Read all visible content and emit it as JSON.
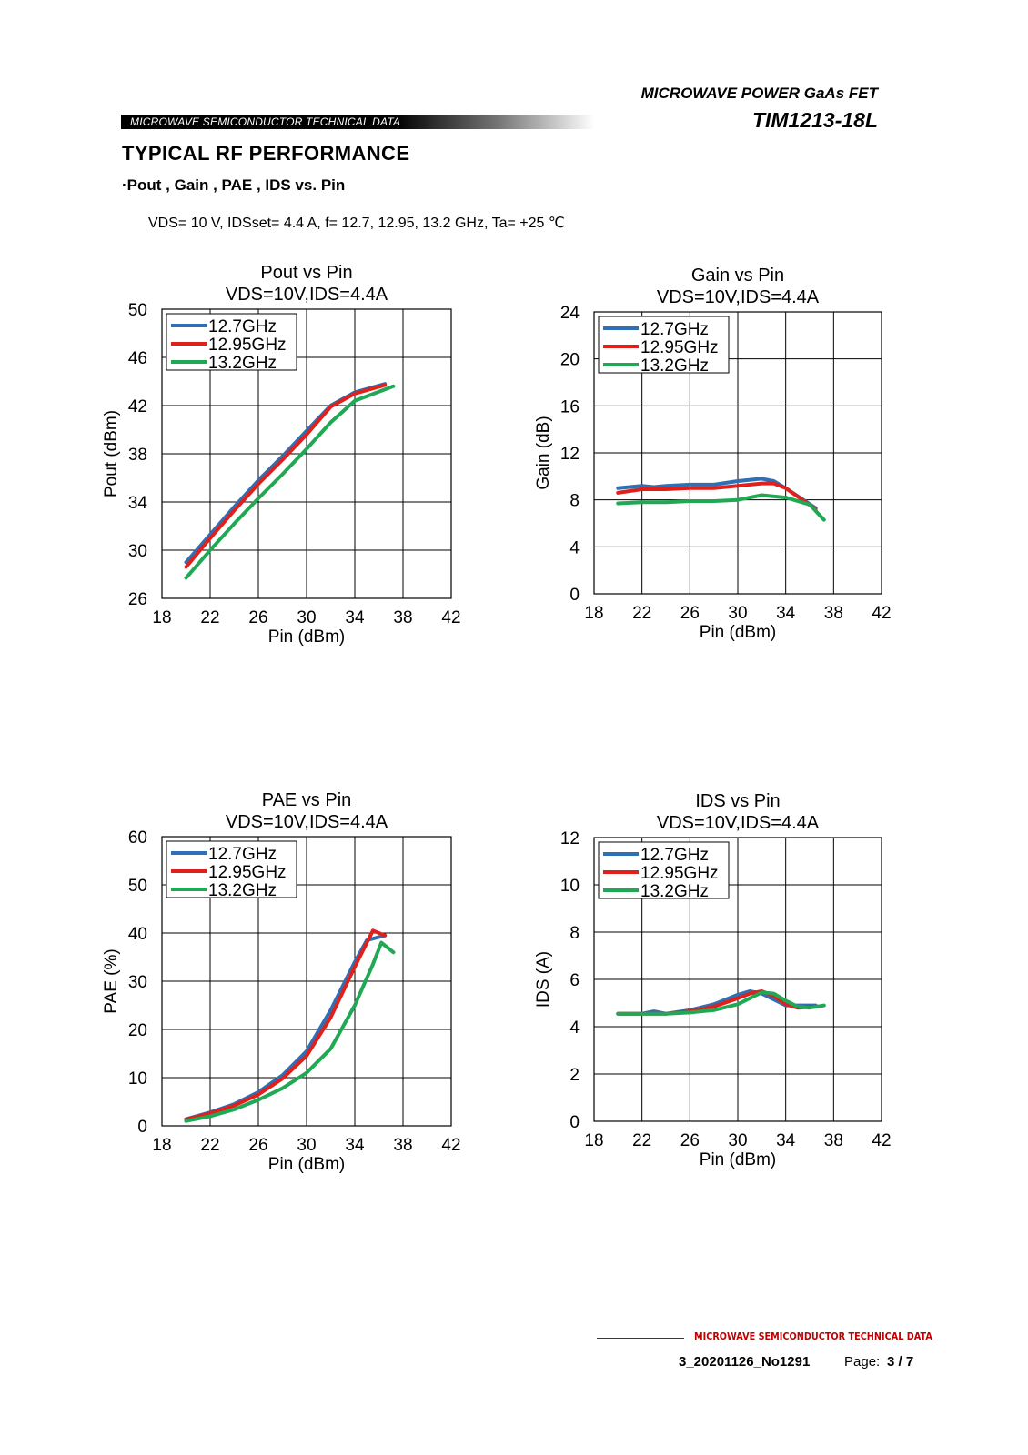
{
  "header": {
    "title": "MICROWAVE POWER GaAs FET",
    "model": "TIM1213-18L",
    "banner": "MICROWAVE SEMICONDUCTOR TECHNICAL DATA"
  },
  "section_title": "TYPICAL  RF  PERFORMANCE",
  "subsection_title": "·Pout , Gain , PAE , IDS vs. Pin",
  "conditions": "VDS= 10 V, IDSset= 4.4 A, f= 12.7, 12.95, 13.2 GHz, Ta= +25 ℃",
  "colors": {
    "12.7GHz": "#2e6fb5",
    "12.95GHz": "#e0201b",
    "13.2GHz": "#20a855",
    "grid": "#000000"
  },
  "chart_data": [
    {
      "type": "line",
      "title": "Pout vs Pin",
      "subtitle": "VDS=10V,IDS=4.4A",
      "xlabel": "Pin (dBm)",
      "ylabel": "Pout (dBm)",
      "xlim": [
        18,
        42
      ],
      "ylim": [
        26,
        50
      ],
      "xticks": [
        18,
        22,
        26,
        30,
        34,
        38,
        42
      ],
      "yticks": [
        26,
        30,
        34,
        38,
        42,
        46,
        50
      ],
      "grid": true,
      "legend": "top-left",
      "series": [
        {
          "name": "12.7GHz",
          "color": "#2e6fb5",
          "x": [
            20,
            22,
            24,
            26,
            28,
            30,
            32,
            34,
            36.5
          ],
          "y": [
            29,
            31.3,
            33.6,
            35.8,
            37.8,
            39.9,
            42.0,
            43.1,
            43.8
          ]
        },
        {
          "name": "12.95GHz",
          "color": "#e0201b",
          "x": [
            20,
            22,
            24,
            26,
            28,
            30,
            32,
            34,
            36.5
          ],
          "y": [
            28.6,
            31.0,
            33.3,
            35.5,
            37.5,
            39.6,
            41.9,
            43.0,
            43.7
          ]
        },
        {
          "name": "13.2GHz",
          "color": "#20a855",
          "x": [
            20,
            22,
            24,
            26,
            28,
            30,
            32,
            34,
            37.2
          ],
          "y": [
            27.7,
            30.0,
            32.2,
            34.3,
            36.3,
            38.4,
            40.6,
            42.4,
            43.6
          ]
        }
      ]
    },
    {
      "type": "line",
      "title": "Gain vs Pin",
      "subtitle": "VDS=10V,IDS=4.4A",
      "xlabel": "Pin (dBm)",
      "ylabel": "Gain (dB)",
      "xlim": [
        18,
        42
      ],
      "ylim": [
        0,
        24
      ],
      "xticks": [
        18,
        22,
        26,
        30,
        34,
        38,
        42
      ],
      "yticks": [
        0,
        4,
        8,
        12,
        16,
        20,
        24
      ],
      "grid": true,
      "legend": "top-left",
      "series": [
        {
          "name": "12.7GHz",
          "color": "#2e6fb5",
          "x": [
            20,
            22,
            23,
            24,
            26,
            28,
            30,
            32,
            33,
            34,
            36.5
          ],
          "y": [
            9.0,
            9.2,
            9.1,
            9.2,
            9.3,
            9.3,
            9.6,
            9.8,
            9.6,
            9.0,
            7.3
          ]
        },
        {
          "name": "12.95GHz",
          "color": "#e0201b",
          "x": [
            20,
            22,
            24,
            26,
            28,
            30,
            32,
            33,
            34,
            36.5
          ],
          "y": [
            8.6,
            8.9,
            8.9,
            9.0,
            9.0,
            9.2,
            9.4,
            9.4,
            9.0,
            7.2
          ]
        },
        {
          "name": "13.2GHz",
          "color": "#20a855",
          "x": [
            20,
            22,
            24,
            26,
            28,
            30,
            32,
            34,
            36,
            37.2
          ],
          "y": [
            7.7,
            7.8,
            7.8,
            7.9,
            7.9,
            8.0,
            8.4,
            8.2,
            7.6,
            6.3
          ]
        }
      ]
    },
    {
      "type": "line",
      "title": "PAE vs Pin",
      "subtitle": "VDS=10V,IDS=4.4A",
      "xlabel": "Pin (dBm)",
      "ylabel": "PAE (%)",
      "xlim": [
        18,
        42
      ],
      "ylim": [
        0,
        60
      ],
      "xticks": [
        18,
        22,
        26,
        30,
        34,
        38,
        42
      ],
      "yticks": [
        0,
        10,
        20,
        30,
        40,
        50,
        60
      ],
      "grid": true,
      "legend": "top-left",
      "series": [
        {
          "name": "12.7GHz",
          "color": "#2e6fb5",
          "x": [
            20,
            22,
            24,
            26,
            28,
            30,
            32,
            34,
            35,
            36.5
          ],
          "y": [
            1.4,
            2.8,
            4.5,
            7.0,
            10.5,
            15.5,
            24.0,
            34.0,
            38.5,
            39.5
          ]
        },
        {
          "name": "12.95GHz",
          "color": "#e0201b",
          "x": [
            20,
            22,
            24,
            26,
            28,
            30,
            32,
            34,
            35.5,
            36.5
          ],
          "y": [
            1.3,
            2.6,
            4.2,
            6.5,
            9.8,
            14.5,
            22.5,
            33.0,
            40.5,
            39.5
          ]
        },
        {
          "name": "13.2GHz",
          "color": "#20a855",
          "x": [
            20,
            22,
            24,
            26,
            28,
            30,
            32,
            34,
            35.5,
            36.2,
            37.2
          ],
          "y": [
            1.0,
            2.0,
            3.4,
            5.4,
            7.8,
            11.0,
            16.0,
            25.0,
            33.5,
            38.0,
            36.0
          ]
        }
      ]
    },
    {
      "type": "line",
      "title": "IDS vs Pin",
      "subtitle": "VDS=10V,IDS=4.4A",
      "xlabel": "Pin (dBm)",
      "ylabel": "IDS (A)",
      "xlim": [
        18,
        42
      ],
      "ylim": [
        0,
        12
      ],
      "xticks": [
        18,
        22,
        26,
        30,
        34,
        38,
        42
      ],
      "yticks": [
        0,
        2,
        4,
        6,
        8,
        10,
        12
      ],
      "grid": true,
      "legend": "top-left",
      "series": [
        {
          "name": "12.7GHz",
          "color": "#2e6fb5",
          "x": [
            20,
            22,
            23,
            24,
            26,
            28,
            30,
            31,
            32,
            34,
            36.5
          ],
          "y": [
            4.55,
            4.55,
            4.65,
            4.55,
            4.7,
            4.95,
            5.35,
            5.5,
            5.4,
            4.9,
            4.9
          ]
        },
        {
          "name": "12.95GHz",
          "color": "#e0201b",
          "x": [
            20,
            22,
            24,
            26,
            28,
            30,
            31,
            32,
            33,
            34,
            35,
            36.5
          ],
          "y": [
            4.55,
            4.55,
            4.55,
            4.65,
            4.85,
            5.2,
            5.4,
            5.5,
            5.3,
            4.95,
            4.8,
            4.85
          ]
        },
        {
          "name": "13.2GHz",
          "color": "#20a855",
          "x": [
            20,
            22,
            24,
            26,
            28,
            30,
            32,
            33,
            34,
            35,
            36,
            37.2
          ],
          "y": [
            4.55,
            4.55,
            4.55,
            4.6,
            4.7,
            4.95,
            5.45,
            5.4,
            5.1,
            4.85,
            4.8,
            4.9
          ]
        }
      ]
    }
  ],
  "footer": {
    "brand": "MICROWAVE SEMICONDUCTOR TECHNICAL DATA",
    "doc_number": "3_20201126_No1291",
    "page_label": "Page:",
    "page": "3 / 7"
  }
}
